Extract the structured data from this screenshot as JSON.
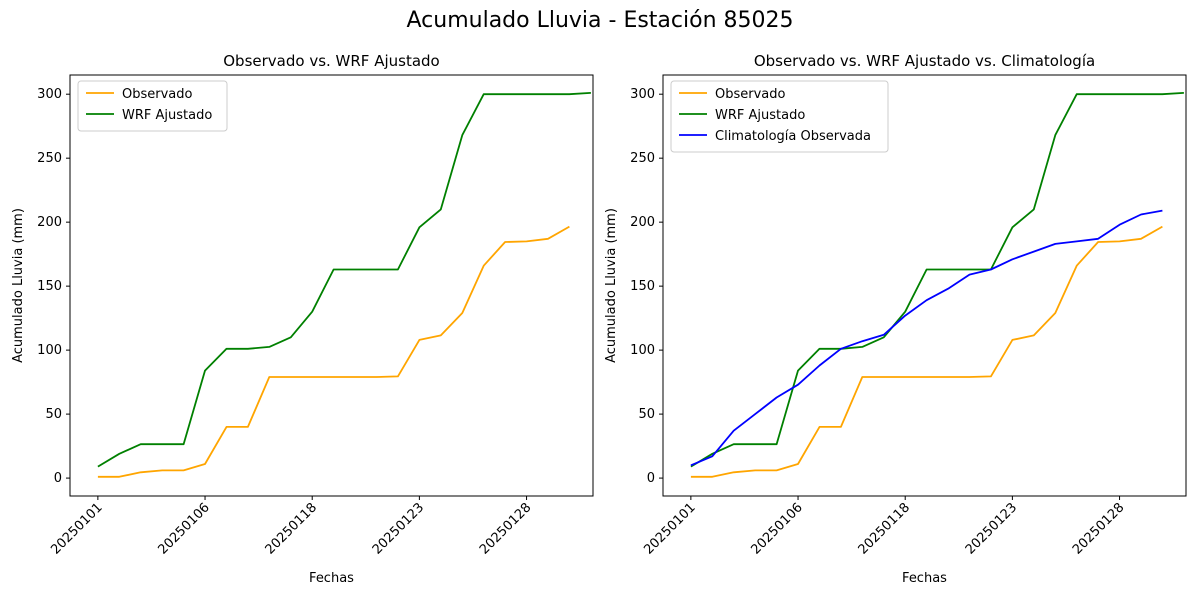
{
  "suptitle": "Acumulado Lluvia - Estación 85025",
  "chart_data": [
    {
      "type": "line",
      "title": "Observado vs. WRF Ajustado",
      "xlabel": "Fechas",
      "ylabel": "Acumulado Lluvia (mm)",
      "x_tick_labels": [
        "20250101",
        "20250106",
        "20250118",
        "20250123",
        "20250128"
      ],
      "x_tick_positions": [
        0,
        5,
        10,
        15,
        20
      ],
      "xlim": [
        -1.3,
        23.1
      ],
      "yticks": [
        0,
        50,
        100,
        150,
        200,
        250,
        300
      ],
      "ylim": [
        -14,
        315
      ],
      "grid": false,
      "legend_position": "upper-left",
      "series": [
        {
          "name": "Observado",
          "color": "#ffa500",
          "values": [
            1,
            1,
            4.5,
            6,
            6,
            11,
            40,
            40,
            79,
            79,
            79,
            79,
            79,
            79,
            79.5,
            108,
            111.5,
            129,
            166,
            184.5,
            185,
            187,
            196.5
          ]
        },
        {
          "name": "WRF Ajustado",
          "color": "#008000",
          "values": [
            9,
            19,
            26.5,
            26.5,
            26.5,
            84,
            101,
            101,
            102.5,
            110,
            130,
            163,
            163,
            163,
            163,
            196,
            210,
            268,
            300,
            300,
            300,
            300,
            300,
            301
          ]
        }
      ]
    },
    {
      "type": "line",
      "title": "Observado vs. WRF Ajustado vs. Climatología",
      "xlabel": "Fechas",
      "ylabel": "Acumulado Lluvia (mm)",
      "x_tick_labels": [
        "20250101",
        "20250106",
        "20250118",
        "20250123",
        "20250128"
      ],
      "x_tick_positions": [
        0,
        5,
        10,
        15,
        20
      ],
      "xlim": [
        -1.3,
        23.1
      ],
      "yticks": [
        0,
        50,
        100,
        150,
        200,
        250,
        300
      ],
      "ylim": [
        -14,
        315
      ],
      "grid": false,
      "legend_position": "upper-left",
      "series": [
        {
          "name": "Observado",
          "color": "#ffa500",
          "values": [
            1,
            1,
            4.5,
            6,
            6,
            11,
            40,
            40,
            79,
            79,
            79,
            79,
            79,
            79,
            79.5,
            108,
            111.5,
            129,
            166,
            184.5,
            185,
            187,
            196.5
          ]
        },
        {
          "name": "WRF Ajustado",
          "color": "#008000",
          "values": [
            9,
            19,
            26.5,
            26.5,
            26.5,
            84,
            101,
            101,
            102.5,
            110,
            130,
            163,
            163,
            163,
            163,
            196,
            210,
            268,
            300,
            300,
            300,
            300,
            300,
            301
          ]
        },
        {
          "name": "Climatología Observada",
          "color": "#0000ff",
          "values": [
            10,
            17,
            37,
            50,
            63,
            73,
            88,
            101,
            107,
            112,
            127,
            139,
            148,
            159,
            163,
            171,
            177,
            183,
            185,
            187,
            198,
            206,
            209
          ]
        }
      ]
    }
  ]
}
